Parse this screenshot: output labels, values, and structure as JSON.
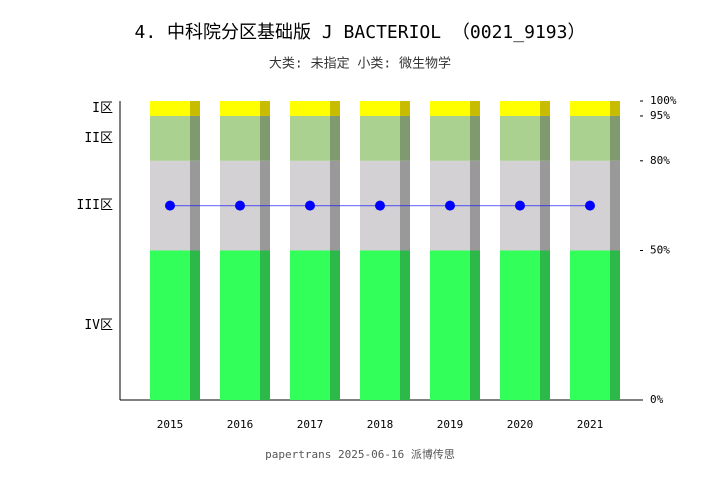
{
  "chart_data": {
    "type": "stacked-bar-line",
    "title": "4. 中科院分区基础版 J BACTERIOL （0021_9193）",
    "subtitle": "大类: 未指定 小类: 微生物学",
    "footer": "papertrans 2025-06-16 派博传思",
    "categories": [
      "2015",
      "2016",
      "2017",
      "2018",
      "2019",
      "2020",
      "2021"
    ],
    "series": [
      {
        "name": "IV区",
        "color": "#33ff5a",
        "shade": "#2db84a",
        "values": [
          50,
          50,
          50,
          50,
          50,
          50,
          50
        ]
      },
      {
        "name": "III区",
        "color": "#d3d1d3",
        "shade": "#999999",
        "values": [
          30,
          30,
          30,
          30,
          30,
          30,
          30
        ]
      },
      {
        "name": "II区",
        "color": "#aad190",
        "shade": "#7f9a6e",
        "values": [
          15,
          15,
          15,
          15,
          15,
          15,
          15
        ]
      },
      {
        "name": "I区",
        "color": "#ffff00",
        "shade": "#c8bc00",
        "values": [
          5,
          5,
          5,
          5,
          5,
          5,
          5
        ]
      }
    ],
    "line": {
      "color": "#0000ff",
      "values": [
        65,
        65,
        65,
        65,
        65,
        65,
        65
      ]
    },
    "ylim": [
      0,
      100
    ],
    "yticks": [
      {
        "value": 0,
        "label": "0%"
      },
      {
        "value": 50,
        "label": "50%"
      },
      {
        "value": 80,
        "label": "80%"
      },
      {
        "value": 95,
        "label": "95%"
      },
      {
        "value": 100,
        "label": "100%"
      }
    ]
  }
}
